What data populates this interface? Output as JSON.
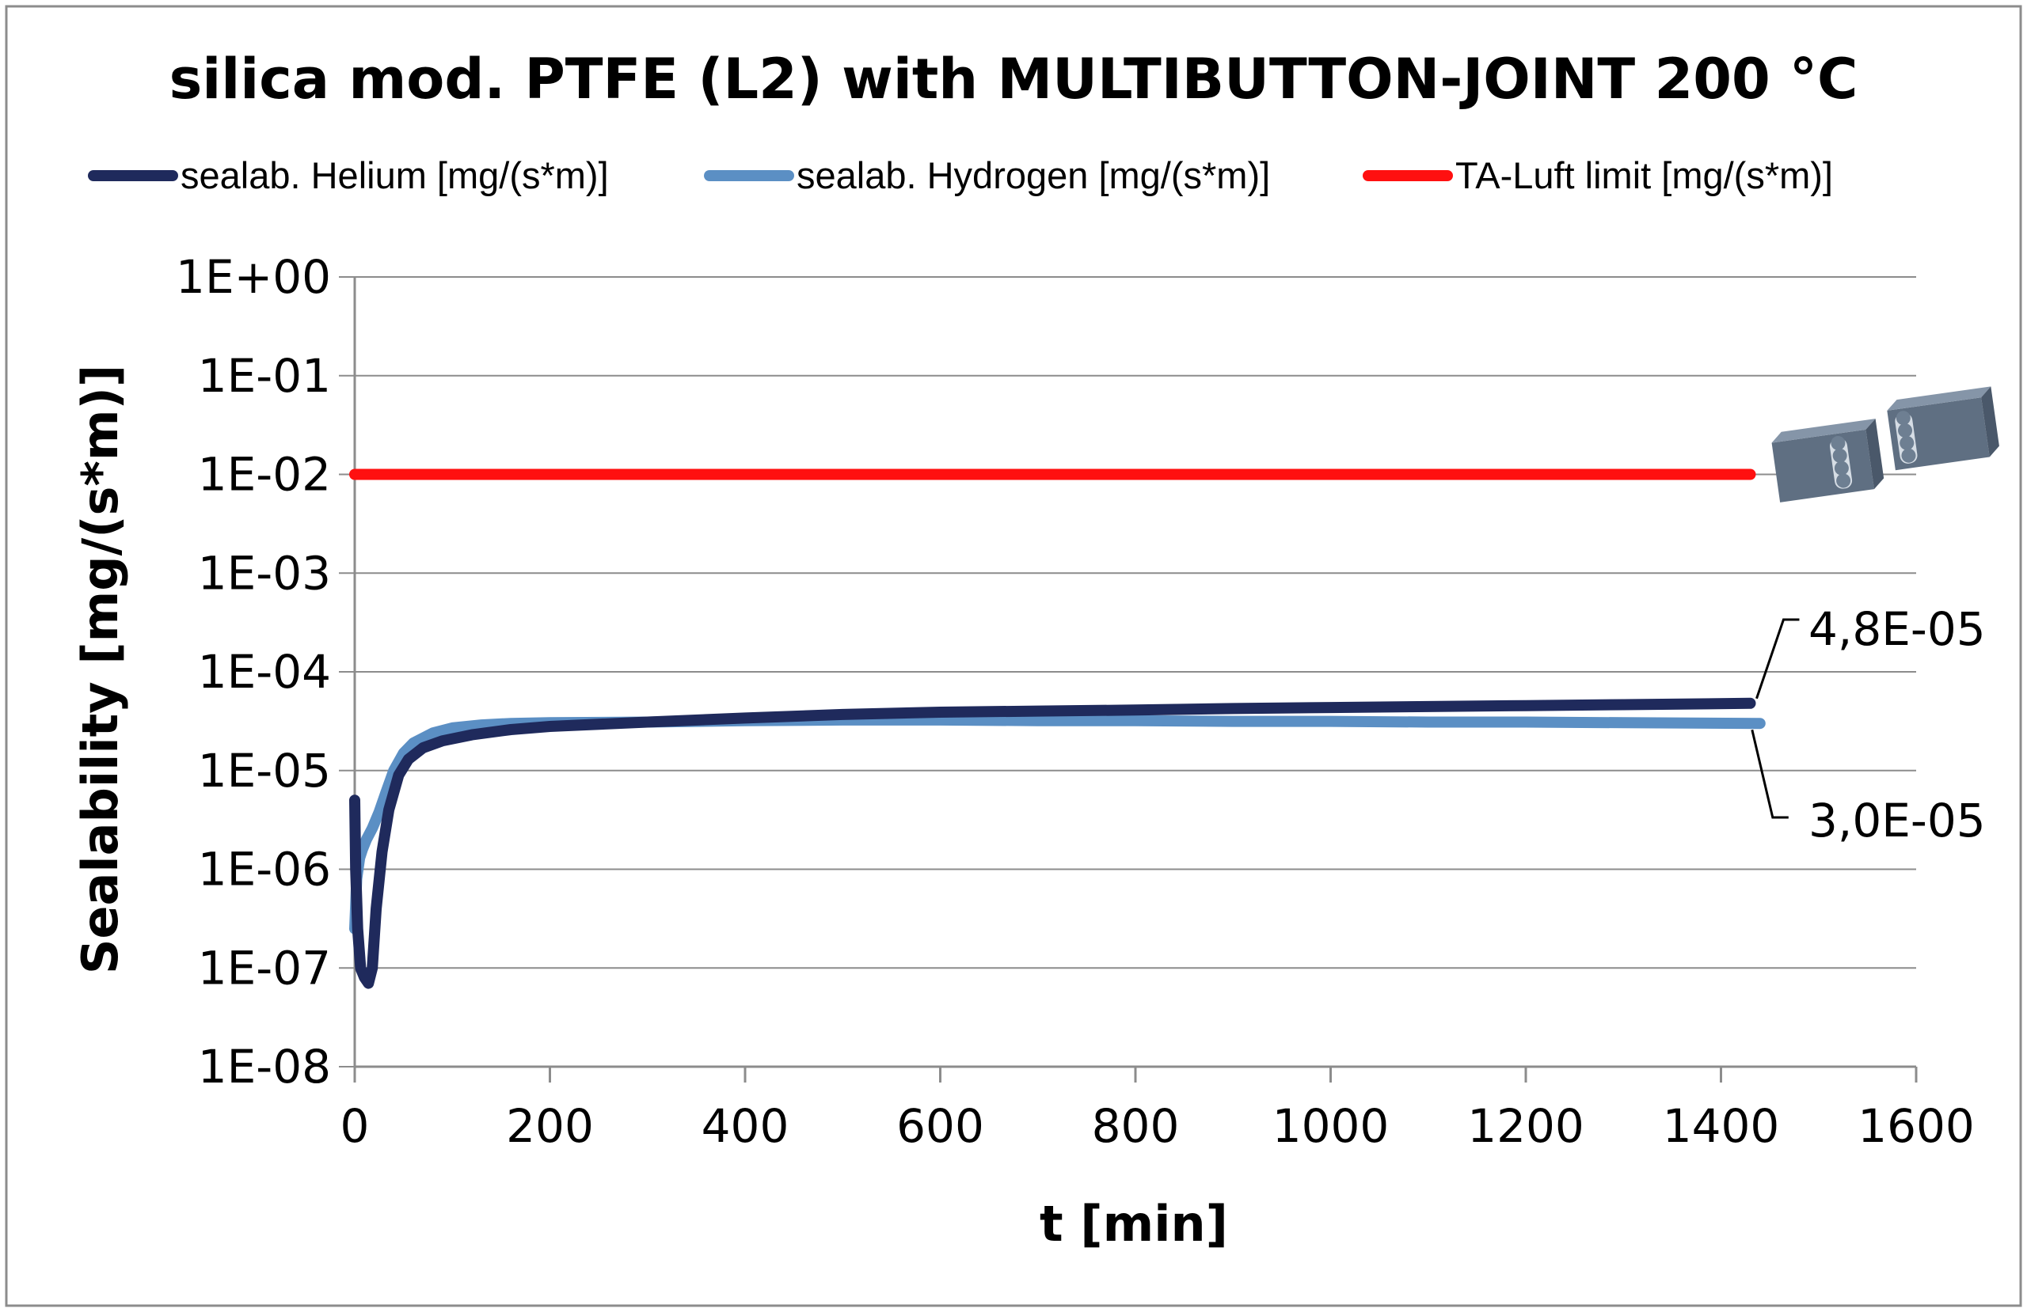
{
  "chart_data": {
    "type": "line",
    "title": "silica mod. PTFE (L2) with MULTIBUTTON-JOINT 200 °C",
    "xlabel": "t [min]",
    "ylabel": "Sealability [mg/(s*m)]",
    "xlim": [
      0,
      1600
    ],
    "ylim_log10": [
      -8,
      0
    ],
    "y_scale": "log",
    "grid": true,
    "legend_position": "top",
    "x_ticks": [
      0,
      200,
      400,
      600,
      800,
      1000,
      1200,
      1400,
      1600
    ],
    "x_tick_labels": [
      "0",
      "200",
      "400",
      "600",
      "800",
      "1000",
      "1200",
      "1400",
      "1600"
    ],
    "y_tick_labels": [
      "1E+00",
      "1E-01",
      "1E-02",
      "1E-03",
      "1E-04",
      "1E-05",
      "1E-06",
      "1E-07",
      "1E-08"
    ],
    "y_tick_values": [
      1,
      0.1,
      0.01,
      0.001,
      0.0001,
      1e-05,
      1e-06,
      1e-07,
      1e-08
    ],
    "series": [
      {
        "name": "sealab. Helium [mg/(s*m)]",
        "color": "#1f2a5c",
        "x": [
          0,
          1,
          3,
          6,
          10,
          14,
          18,
          22,
          28,
          35,
          45,
          55,
          70,
          90,
          120,
          160,
          200,
          300,
          400,
          500,
          600,
          700,
          800,
          900,
          1000,
          1100,
          1200,
          1300,
          1430
        ],
        "y": [
          5e-06,
          1e-06,
          2.5e-07,
          1e-07,
          8e-08,
          7e-08,
          1e-07,
          4e-07,
          1.5e-06,
          4e-06,
          9e-06,
          1.3e-05,
          1.7e-05,
          2e-05,
          2.3e-05,
          2.6e-05,
          2.8e-05,
          3.1e-05,
          3.4e-05,
          3.7e-05,
          3.9e-05,
          4e-05,
          4.1e-05,
          4.25e-05,
          4.35e-05,
          4.45e-05,
          4.55e-05,
          4.65e-05,
          4.8e-05
        ]
      },
      {
        "name": "sealab. Hydrogen [mg/(s*m)]",
        "color": "#5b8fc4",
        "x": [
          0,
          2,
          5,
          8,
          12,
          18,
          25,
          32,
          40,
          50,
          60,
          80,
          100,
          130,
          160,
          200,
          300,
          400,
          500,
          600,
          700,
          800,
          900,
          1000,
          1100,
          1200,
          1300,
          1440
        ],
        "y": [
          2.5e-07,
          8e-07,
          1.3e-06,
          1.6e-06,
          2e-06,
          2.6e-06,
          3.8e-06,
          6e-06,
          1e-05,
          1.5e-05,
          1.9e-05,
          2.4e-05,
          2.7e-05,
          2.9e-05,
          3e-05,
          3.05e-05,
          3.1e-05,
          3.2e-05,
          3.25e-05,
          3.25e-05,
          3.2e-05,
          3.2e-05,
          3.15e-05,
          3.15e-05,
          3.1e-05,
          3.1e-05,
          3.05e-05,
          3e-05
        ]
      },
      {
        "name": "TA-Luft limit [mg/(s*m)]",
        "color": "#ff1010",
        "x": [
          0,
          1430
        ],
        "y": [
          0.01,
          0.01
        ]
      }
    ],
    "annotations": [
      {
        "text": "4,8E-05",
        "series": "sealab. Helium [mg/(s*m)]",
        "x": 1430,
        "y": 4.8e-05
      },
      {
        "text": "3,0E-05",
        "series": "sealab. Hydrogen [mg/(s*m)]",
        "x": 1440,
        "y": 3e-05
      }
    ]
  },
  "icons": {
    "joint": "multibutton-joint-icon",
    "joint_color": "#6e7f92"
  }
}
